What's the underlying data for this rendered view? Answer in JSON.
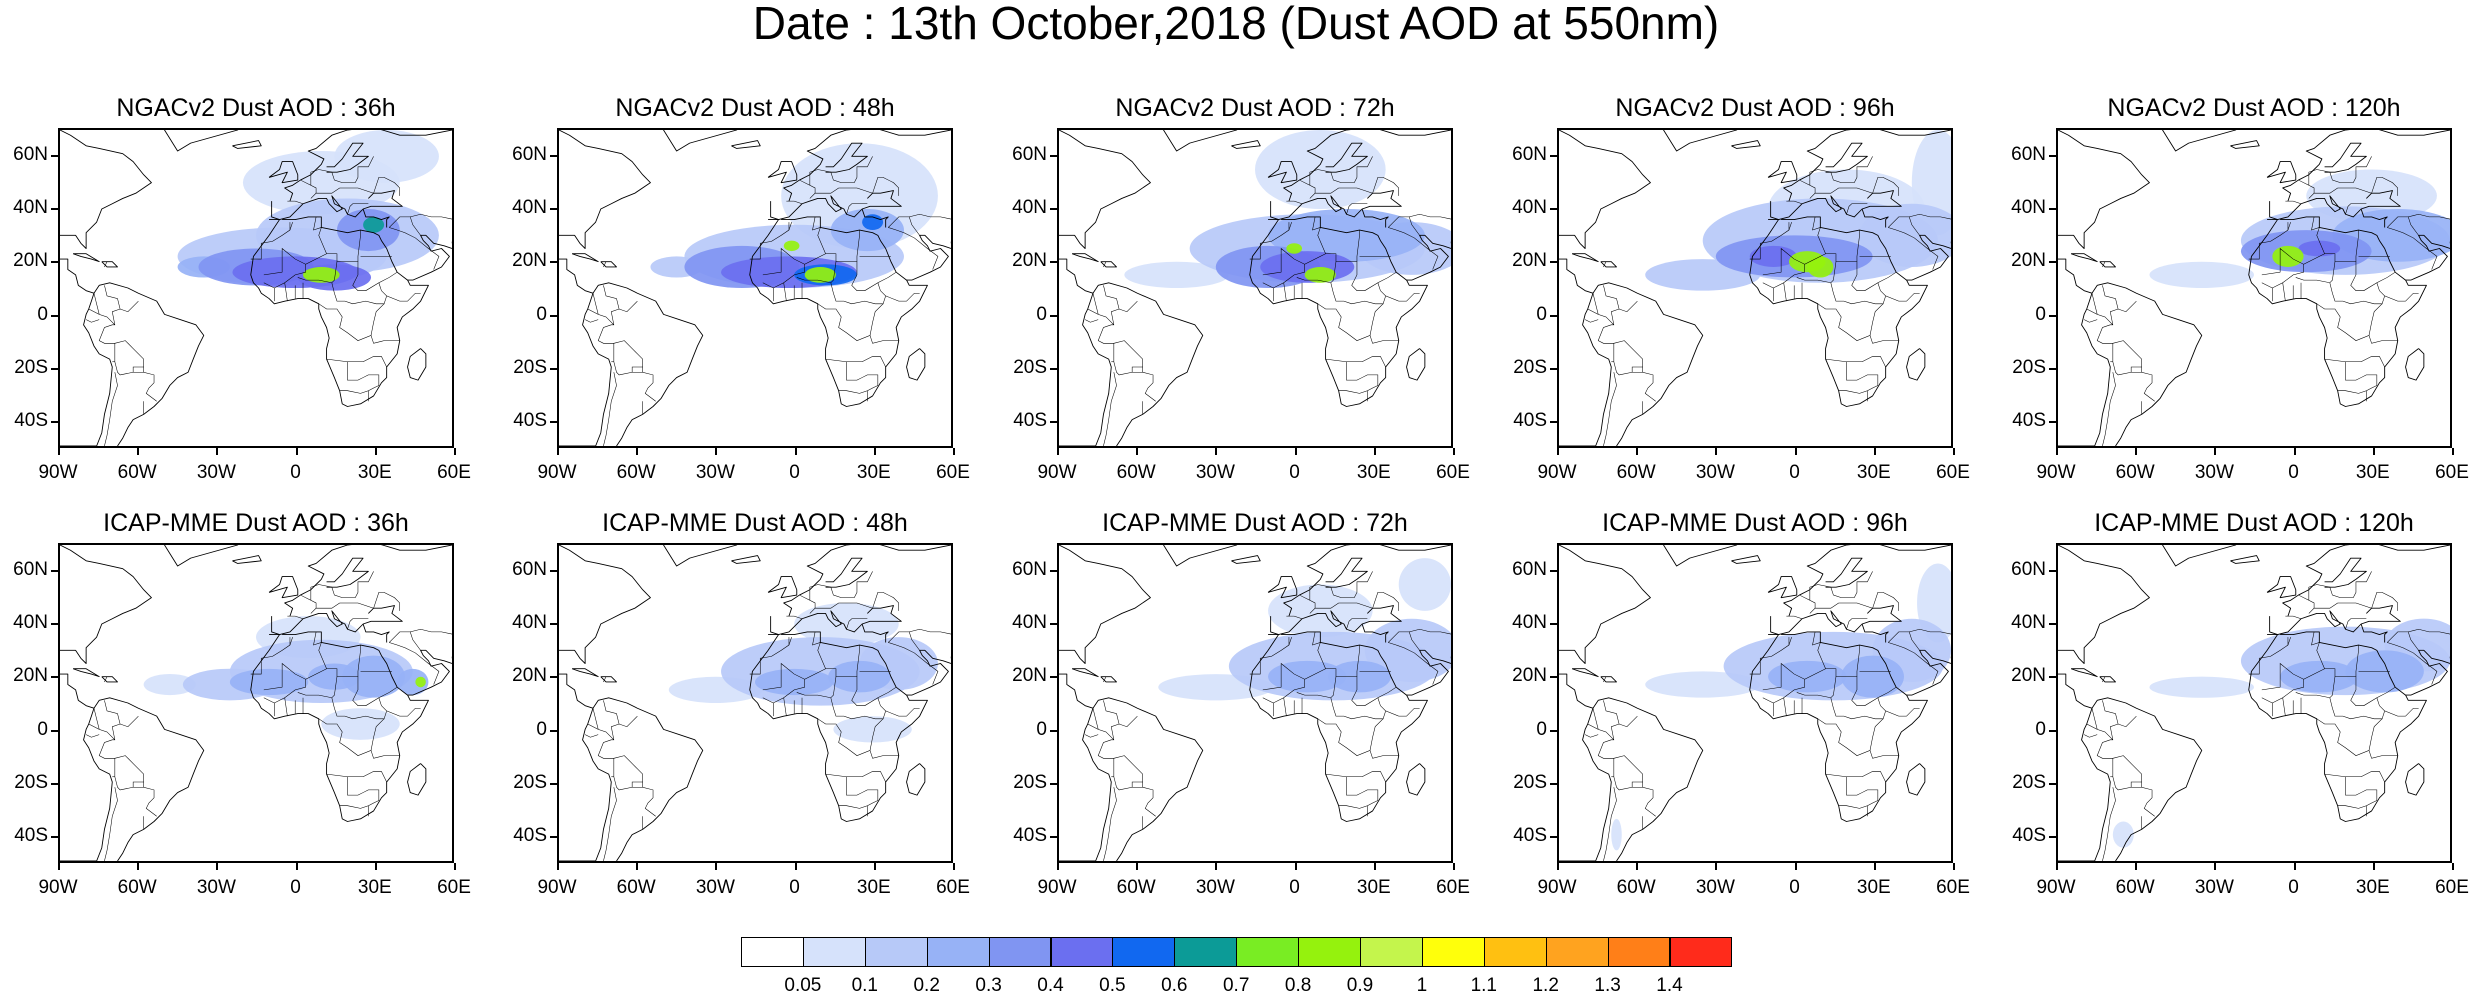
{
  "title": "Date : 13th October,2018 (Dust AOD at 550nm)",
  "lat_ticks": [
    "60N",
    "40N",
    "20N",
    "0",
    "20S",
    "40S"
  ],
  "lon_ticks": [
    "90W",
    "60W",
    "30W",
    "0",
    "30E",
    "60E"
  ],
  "panels": [
    {
      "title": "NGACv2 Dust AOD : 36h",
      "lead_hours": 36,
      "model": "NGACv2"
    },
    {
      "title": "NGACv2 Dust AOD : 48h",
      "lead_hours": 48,
      "model": "NGACv2"
    },
    {
      "title": "NGACv2 Dust AOD : 72h",
      "lead_hours": 72,
      "model": "NGACv2"
    },
    {
      "title": "NGACv2 Dust AOD : 96h",
      "lead_hours": 96,
      "model": "NGACv2"
    },
    {
      "title": "NGACv2 Dust AOD : 120h",
      "lead_hours": 120,
      "model": "NGACv2"
    },
    {
      "title": "ICAP-MME Dust AOD : 36h",
      "lead_hours": 36,
      "model": "ICAP-MME"
    },
    {
      "title": "ICAP-MME Dust AOD : 48h",
      "lead_hours": 48,
      "model": "ICAP-MME"
    },
    {
      "title": "ICAP-MME Dust AOD : 72h",
      "lead_hours": 72,
      "model": "ICAP-MME"
    },
    {
      "title": "ICAP-MME Dust AOD : 96h",
      "lead_hours": 96,
      "model": "ICAP-MME"
    },
    {
      "title": "ICAP-MME Dust AOD : 120h",
      "lead_hours": 120,
      "model": "ICAP-MME"
    }
  ],
  "colorbar": {
    "colors": [
      "#ffffff",
      "#d6e2fb",
      "#b7c9f8",
      "#97b2f6",
      "#8095f2",
      "#6b6ff0",
      "#1168f0",
      "#0c9b97",
      "#79ed23",
      "#95f20d",
      "#c4f54c",
      "#ffff0b",
      "#ffc011",
      "#ffa31f",
      "#ff7f18",
      "#ff2b1b"
    ],
    "labels": [
      "0.05",
      "0.1",
      "0.2",
      "0.3",
      "0.4",
      "0.5",
      "0.6",
      "0.7",
      "0.8",
      "0.9",
      "1",
      "1.1",
      "1.2",
      "1.3",
      "1.4"
    ]
  },
  "map_extent": {
    "lon": [
      -90,
      60
    ],
    "lat": [
      -50,
      70
    ]
  }
}
